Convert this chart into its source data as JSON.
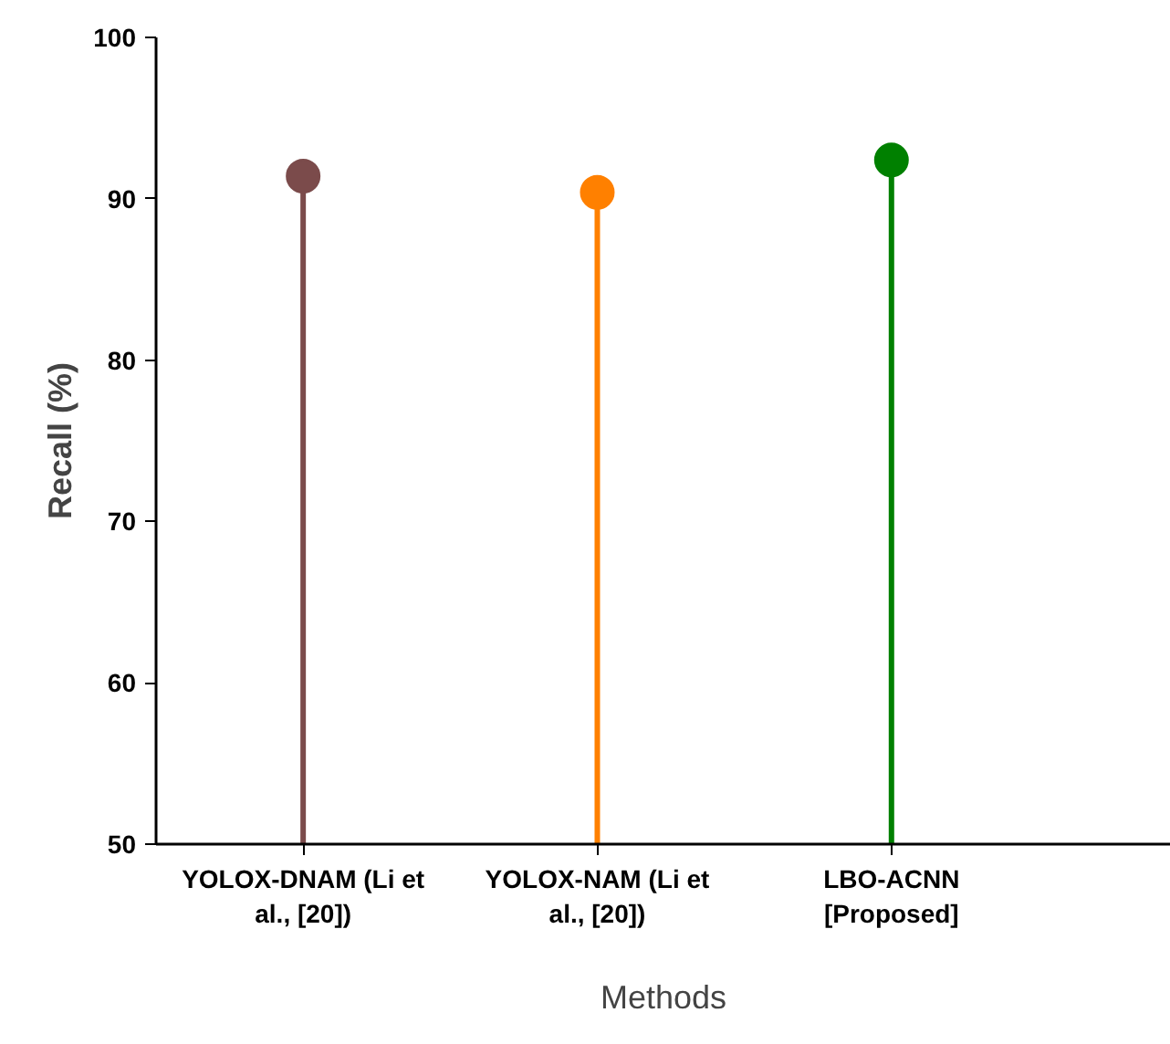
{
  "chart_data": {
    "type": "lollipop",
    "xlabel": "Methods",
    "ylabel": "Recall (%)",
    "categories": [
      "YOLOX-DNAM (Li et al., [20])",
      "YOLOX-NAM (Li et al., [20])",
      "LBO-ACNN [Proposed]"
    ],
    "values": [
      91.4,
      90.4,
      92.4
    ],
    "colors": [
      "#7b4b4b",
      "#ff8000",
      "#008000"
    ],
    "ylim": [
      50,
      100
    ],
    "yticks": [
      50,
      60,
      70,
      80,
      90,
      100
    ],
    "grid": false,
    "marker": "circle"
  }
}
